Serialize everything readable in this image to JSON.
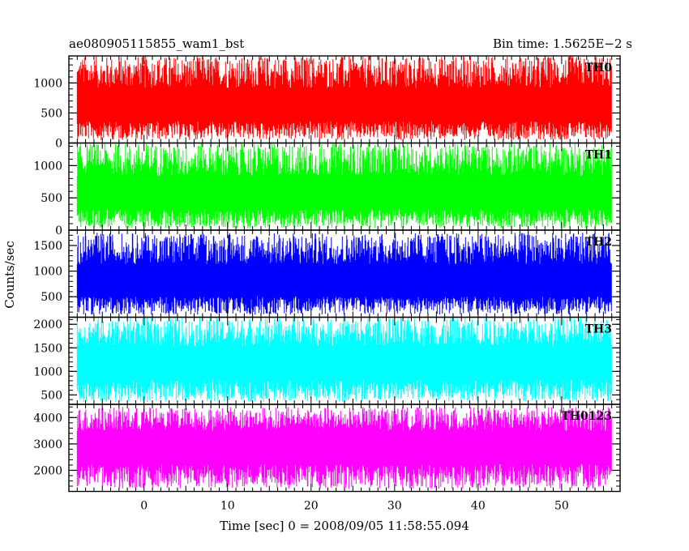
{
  "chart_data": {
    "type": "line",
    "title_left": "ae080905115855_wam1_bst",
    "title_right": "Bin time: 1.5625E−2 s",
    "xlabel": "Time [sec] 0 = 2008/09/05 11:58:55.094",
    "ylabel": "Counts/sec",
    "xlim": [
      -9,
      57
    ],
    "data_x_range": [
      -8,
      56
    ],
    "x_ticks": [
      0,
      10,
      20,
      30,
      40,
      50
    ],
    "x_tick_labels": [
      "0",
      "10",
      "20",
      "30",
      "40",
      "50"
    ],
    "grid": false,
    "panels": [
      {
        "name": "TH0",
        "color": "#ff0000",
        "ylim": [
          0,
          1450
        ],
        "y_ticks": [
          0,
          500,
          1000
        ],
        "y_tick_labels": [
          "0",
          "500",
          "1000"
        ],
        "mean": 620,
        "approx_min": 50,
        "approx_max": 1450
      },
      {
        "name": "TH1",
        "color": "#00ff00",
        "ylim": [
          0,
          1350
        ],
        "y_ticks": [
          0,
          500,
          1000
        ],
        "y_tick_labels": [
          "0",
          "500",
          "1000"
        ],
        "mean": 560,
        "approx_min": 30,
        "approx_max": 1350
      },
      {
        "name": "TH2",
        "color": "#0000ff",
        "ylim": [
          100,
          1800
        ],
        "y_ticks": [
          500,
          1000,
          1500
        ],
        "y_tick_labels": [
          "500",
          "1000",
          "1500"
        ],
        "mean": 800,
        "approx_min": 150,
        "approx_max": 1750
      },
      {
        "name": "TH3",
        "color": "#00ffff",
        "ylim": [
          300,
          2150
        ],
        "y_ticks": [
          500,
          1000,
          1500,
          2000
        ],
        "y_tick_labels": [
          "500",
          "1000",
          "1500",
          "2000"
        ],
        "mean": 1200,
        "approx_min": 350,
        "approx_max": 2150
      },
      {
        "name": "TH0123",
        "color": "#ff00ff",
        "ylim": [
          1200,
          4500
        ],
        "y_ticks": [
          2000,
          3000,
          4000
        ],
        "y_tick_labels": [
          "2000",
          "3000",
          "4000"
        ],
        "mean": 3000,
        "approx_min": 1300,
        "approx_max": 4400
      }
    ]
  }
}
